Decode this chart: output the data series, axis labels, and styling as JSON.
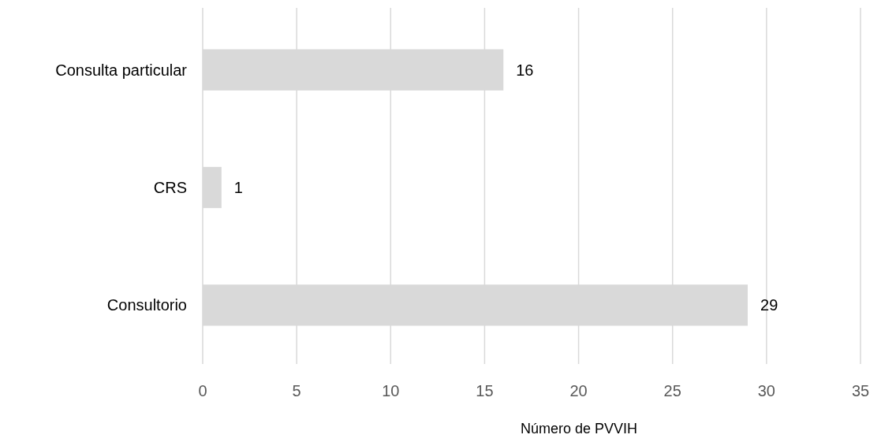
{
  "chart_data": {
    "type": "bar",
    "orientation": "horizontal",
    "categories": [
      "Consulta particular",
      "CRS",
      "Consultorio"
    ],
    "values": [
      16,
      1,
      29
    ],
    "color": "#d9d9d9",
    "xlabel": "Número de PVVIH",
    "xlim": [
      0,
      35
    ],
    "xticks": [
      0,
      5,
      10,
      15,
      20,
      25,
      30,
      35
    ],
    "grid": "x",
    "data_labels": true
  }
}
